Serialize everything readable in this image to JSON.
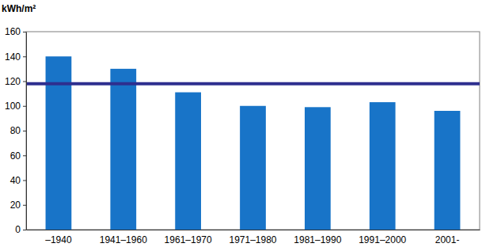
{
  "chart_data": {
    "type": "bar",
    "y_label": "kWh/m²",
    "categories": [
      "–1940",
      "1941–1960",
      "1961–1970",
      "1971–1980",
      "1981–1990",
      "1991–2000",
      "2001-"
    ],
    "values": [
      140,
      130,
      111,
      100,
      99,
      103,
      96
    ],
    "color": "#1874c8",
    "reference_line": {
      "value": 118,
      "color": "#2e2f8f"
    },
    "ylim": [
      0,
      160
    ],
    "yticks": [
      0,
      20,
      40,
      60,
      80,
      100,
      120,
      140,
      160
    ],
    "grid": false
  }
}
